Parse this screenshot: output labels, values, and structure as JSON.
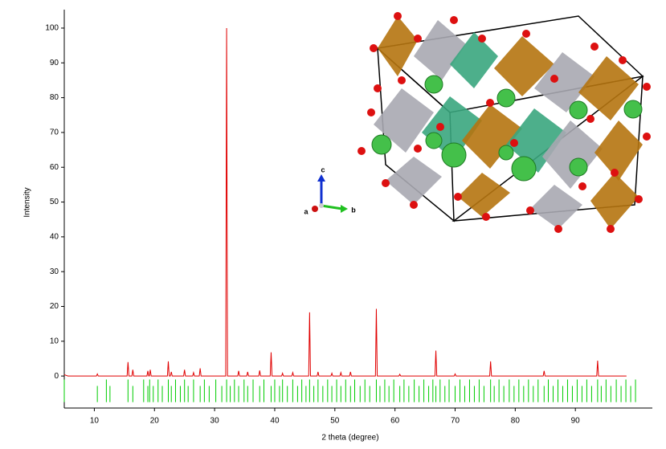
{
  "chart_data": {
    "type": "line",
    "x_label": "2 theta (degree)",
    "y_label": "Intensity",
    "color": "#e00000",
    "x": [
      5,
      5.6,
      10.35,
      10.5,
      10.65,
      15.45,
      15.6,
      15.75,
      16.25,
      16.4,
      16.55,
      18.75,
      18.9,
      19.05,
      19.15,
      19.3,
      19.45,
      22.15,
      22.3,
      22.45,
      22.65,
      22.8,
      22.95,
      24.85,
      25.0,
      25.15,
      26.35,
      26.5,
      26.65,
      27.45,
      27.6,
      27.75,
      31.85,
      32.0,
      32.15,
      33.85,
      34.0,
      34.15,
      35.35,
      35.5,
      35.65,
      37.35,
      37.5,
      37.65,
      39.25,
      39.4,
      39.55,
      41.15,
      41.3,
      41.45,
      42.85,
      43.0,
      43.15,
      45.65,
      45.8,
      45.95,
      47.05,
      47.2,
      47.35,
      49.35,
      49.5,
      49.65,
      50.85,
      51.0,
      51.15,
      52.45,
      52.6,
      52.75,
      56.75,
      56.9,
      57.05,
      60.65,
      60.8,
      60.95,
      66.65,
      66.8,
      66.95,
      69.85,
      70.0,
      70.15,
      75.75,
      75.9,
      76.05,
      84.65,
      84.8,
      84.95,
      93.55,
      93.7,
      93.85,
      98.5
    ],
    "values": [
      0.4,
      0,
      0,
      0.6,
      0,
      0,
      4,
      0,
      0,
      1.8,
      0,
      0,
      1.5,
      0,
      0,
      1.8,
      0,
      0,
      4.2,
      0,
      0,
      1.2,
      0,
      0,
      1.8,
      0,
      0,
      1,
      0,
      0,
      2.2,
      0,
      0,
      100,
      0,
      0,
      1.5,
      0,
      0,
      1.2,
      0,
      0,
      1.6,
      0,
      0,
      6.8,
      0,
      0,
      0.8,
      0,
      0,
      1.0,
      0,
      0,
      18.3,
      0,
      0,
      1.2,
      0,
      0,
      0.8,
      0,
      0,
      1.0,
      0,
      0,
      1.2,
      0,
      0,
      19.3,
      0,
      0,
      0.5,
      0,
      0,
      7.3,
      0,
      0,
      0.6,
      0,
      0,
      4.2,
      0,
      0,
      1.5,
      0,
      0,
      4.4,
      0,
      0
    ],
    "reflections": {
      "color": "#00cc00",
      "x": [
        5.0,
        10.5,
        12.0,
        12.6,
        15.6,
        16.4,
        18.2,
        18.9,
        19.2,
        19.8,
        20.6,
        21.3,
        22.3,
        22.8,
        23.5,
        24.3,
        25.0,
        25.6,
        26.5,
        27.6,
        28.3,
        29.1,
        30.2,
        31.2,
        32.0,
        32.6,
        33.3,
        34.0,
        34.9,
        35.5,
        36.4,
        37.5,
        38.2,
        39.4,
        40.0,
        40.8,
        41.3,
        42.1,
        43.0,
        43.8,
        44.5,
        45.2,
        45.8,
        46.5,
        47.2,
        48.0,
        48.8,
        49.5,
        50.3,
        51.0,
        51.8,
        52.6,
        53.3,
        54.2,
        55.0,
        55.8,
        56.9,
        57.5,
        58.3,
        59.0,
        59.8,
        60.8,
        61.5,
        62.3,
        63.2,
        64.0,
        64.8,
        65.6,
        66.3,
        66.8,
        67.5,
        68.3,
        69.0,
        70.0,
        70.8,
        71.6,
        72.4,
        73.2,
        74.0,
        74.8,
        75.9,
        76.5,
        77.3,
        78.1,
        79.0,
        79.8,
        80.6,
        81.4,
        82.2,
        83.0,
        83.8,
        84.8,
        85.5,
        86.3,
        87.1,
        87.9,
        88.7,
        89.5,
        90.3,
        91.1,
        91.9,
        92.7,
        93.7,
        94.3,
        95.1,
        95.9,
        96.8,
        97.6,
        98.4,
        99.2,
        100.0
      ]
    },
    "xlim": [
      5,
      102.8
    ],
    "xticks": [
      10,
      20,
      30,
      40,
      50,
      60,
      70,
      80,
      90
    ],
    "ylim": [
      -9.2,
      105.3
    ],
    "yticks": [
      0,
      10,
      20,
      30,
      40,
      50,
      60,
      70,
      80,
      90,
      100
    ]
  },
  "inset": {
    "axis_labels": [
      "a",
      "b",
      "c"
    ]
  }
}
